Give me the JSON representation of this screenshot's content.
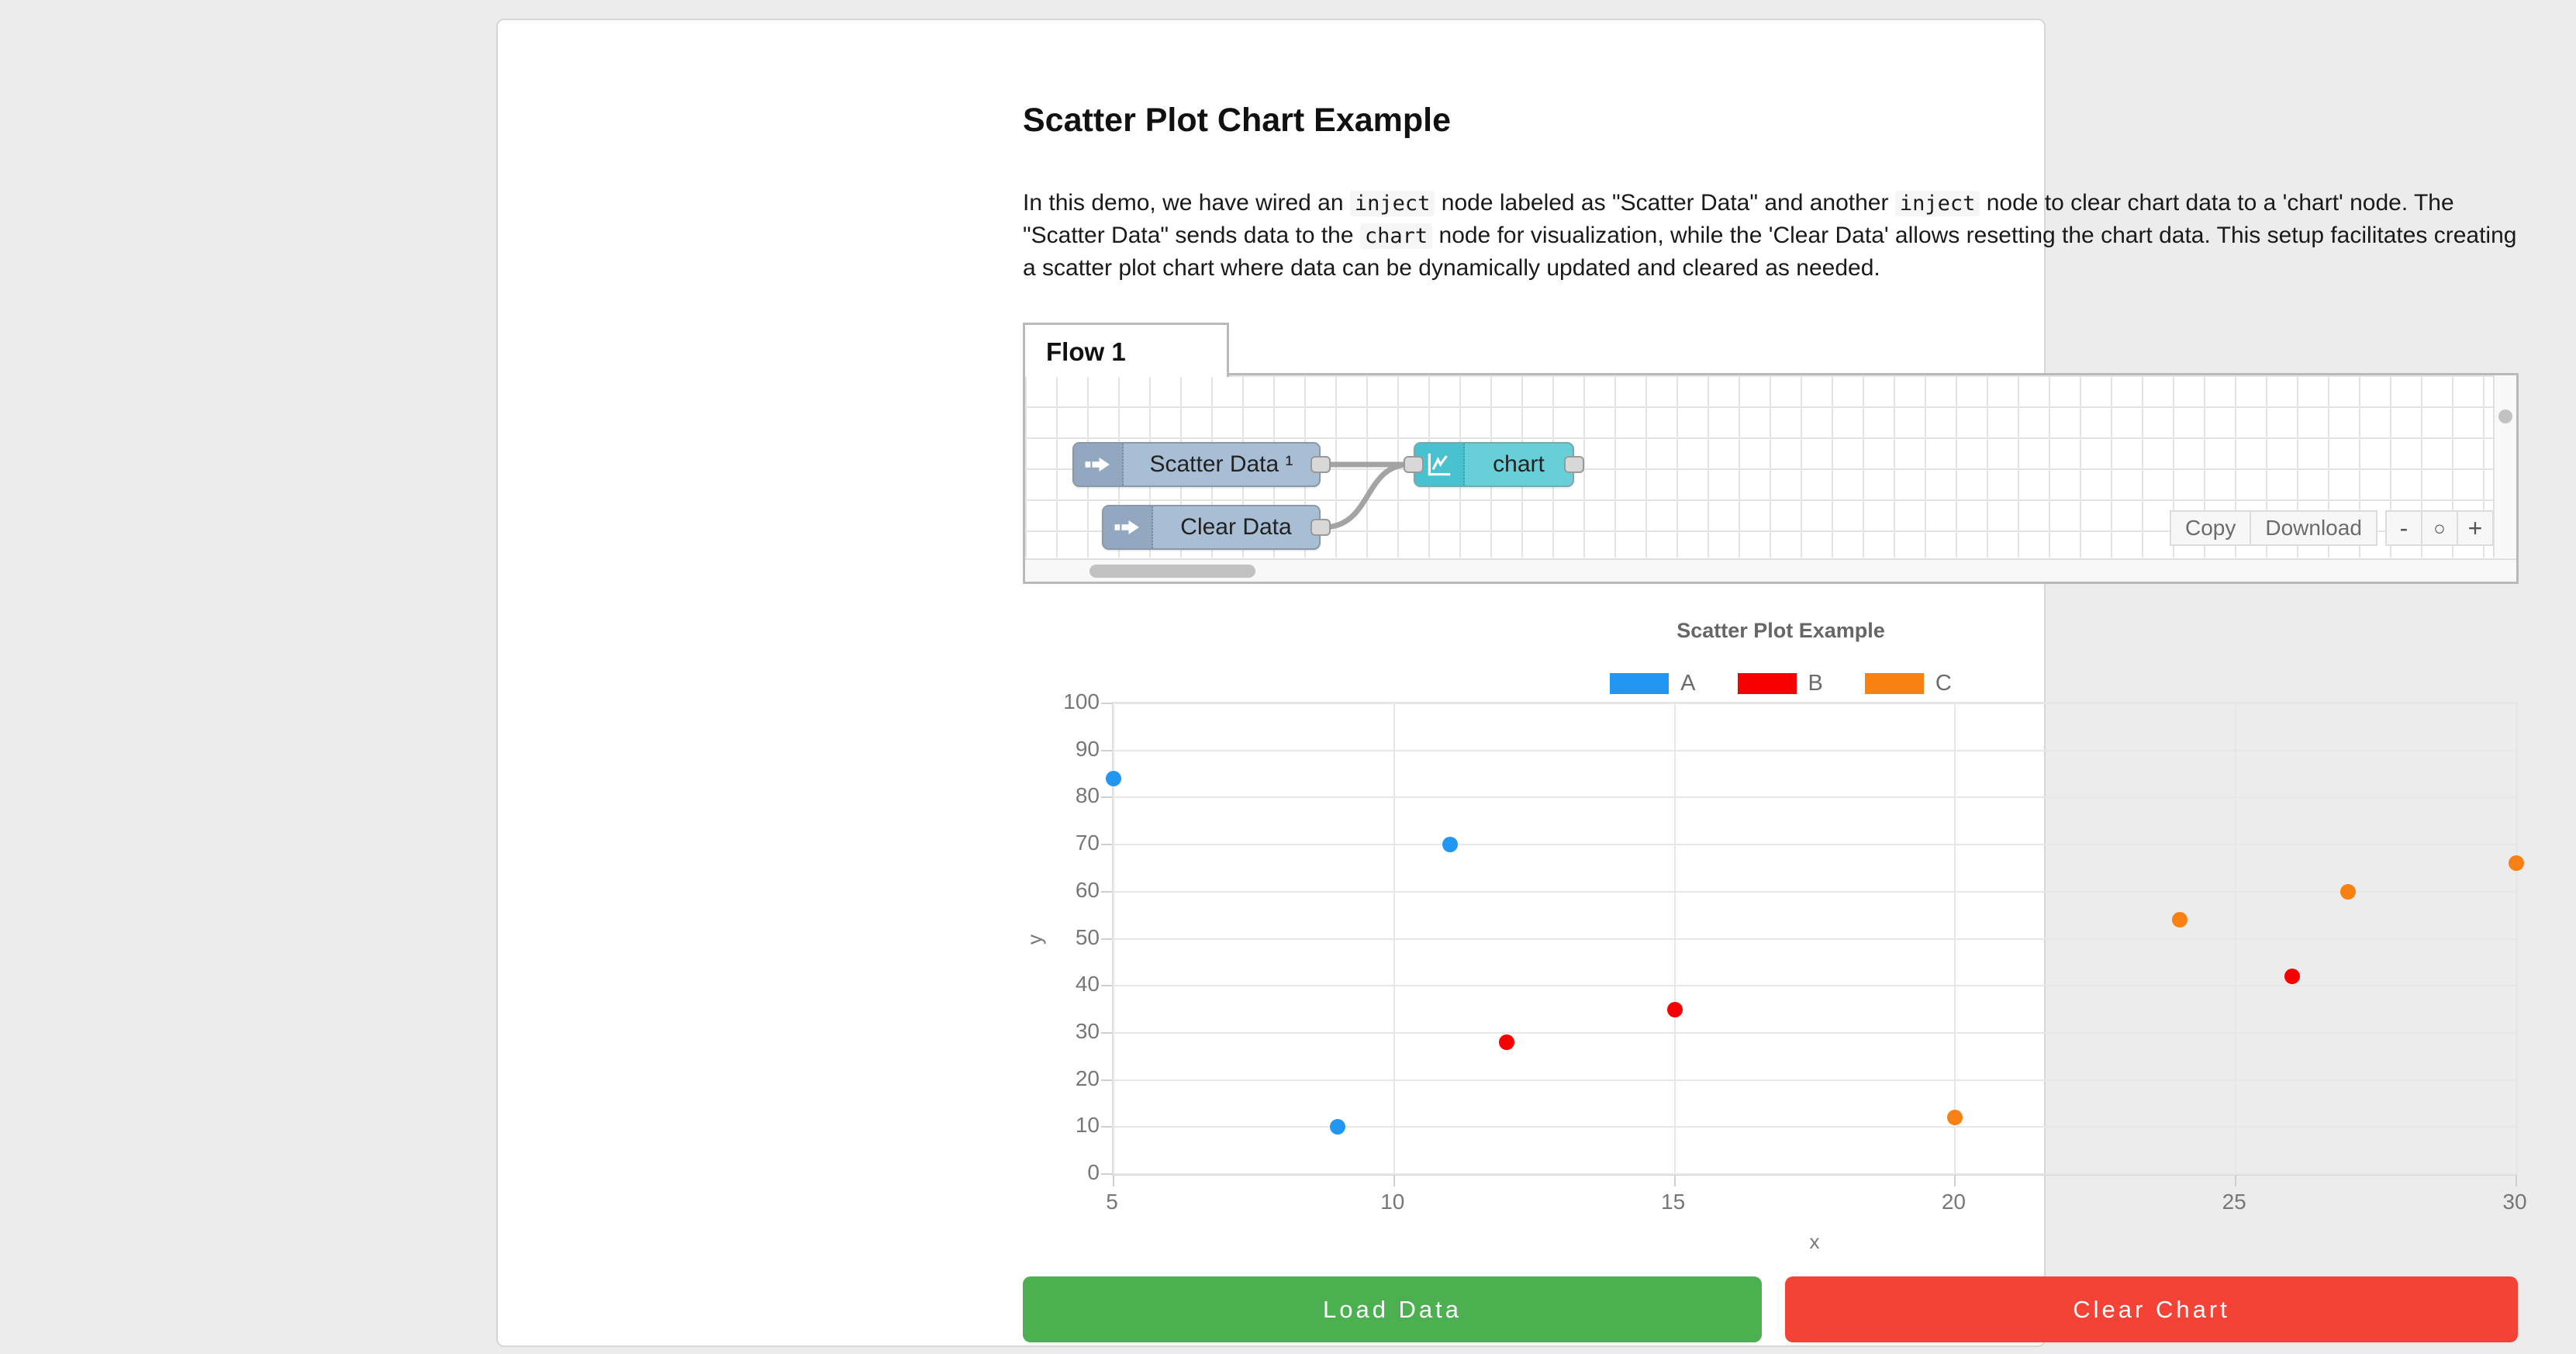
{
  "page": {
    "title": "Scatter Plot Chart Example"
  },
  "description": {
    "segments": [
      {
        "type": "text",
        "text": "In this demo, we have wired an "
      },
      {
        "type": "code",
        "text": "inject"
      },
      {
        "type": "text",
        "text": " node labeled as \"Scatter Data\" and another "
      },
      {
        "type": "code",
        "text": "inject"
      },
      {
        "type": "text",
        "text": " node to clear chart data to a 'chart' node. The \"Scatter Data\" sends data to the "
      },
      {
        "type": "code",
        "text": "chart"
      },
      {
        "type": "text",
        "text": " node for visualization, while the 'Clear Data' allows resetting the chart data. This setup facilitates creating a scatter plot chart where data can be dynamically updated and cleared as needed."
      }
    ]
  },
  "flow": {
    "tab_label": "Flow 1",
    "nodes": {
      "scatter": {
        "label": "Scatter Data ¹",
        "type": "inject"
      },
      "clear": {
        "label": "Clear Data",
        "type": "inject"
      },
      "chart": {
        "label": "chart",
        "type": "chart"
      }
    },
    "toolbar": {
      "copy_label": "Copy",
      "download_label": "Download"
    },
    "zoom": {
      "out_label": "-",
      "reset_label": "○",
      "in_label": "+"
    }
  },
  "chart_data": {
    "type": "scatter",
    "title": "Scatter Plot Example",
    "xlabel": "x",
    "ylabel": "y",
    "xlim": [
      5,
      30
    ],
    "ylim": [
      0,
      100
    ],
    "x_ticks": [
      5,
      10,
      15,
      20,
      25,
      30
    ],
    "y_ticks": [
      0,
      10,
      20,
      30,
      40,
      50,
      60,
      70,
      80,
      90,
      100
    ],
    "grid": true,
    "legend_position": "top",
    "series": [
      {
        "name": "A",
        "color": "#2196f3",
        "points": [
          [
            5,
            84
          ],
          [
            9,
            10
          ],
          [
            11,
            70
          ]
        ]
      },
      {
        "name": "B",
        "color": "#f80000",
        "points": [
          [
            12,
            28
          ],
          [
            15,
            35
          ],
          [
            26,
            42
          ]
        ]
      },
      {
        "name": "C",
        "color": "#f98012",
        "points": [
          [
            20,
            12
          ],
          [
            24,
            54
          ],
          [
            27,
            60
          ],
          [
            30,
            66
          ]
        ]
      }
    ]
  },
  "actions": {
    "load_label": "Load Data",
    "clear_label": "Clear Chart"
  }
}
